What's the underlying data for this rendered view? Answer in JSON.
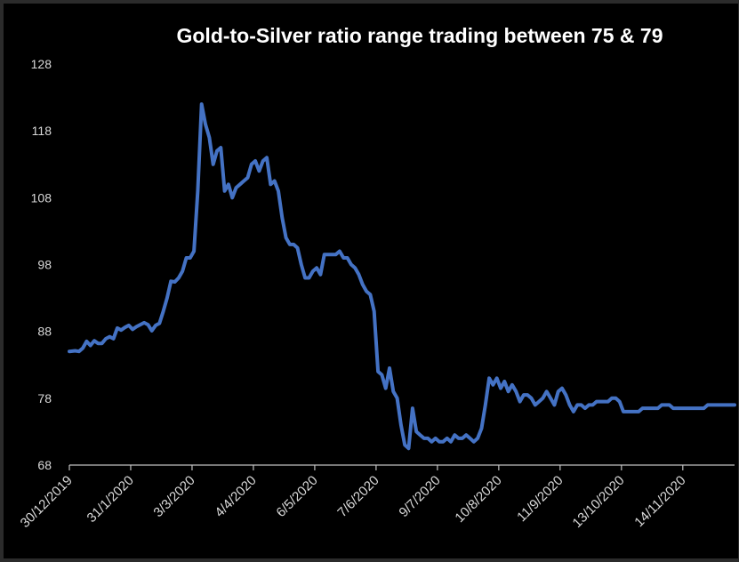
{
  "chart_data": {
    "type": "line",
    "title": "Gold-to-Silver ratio range trading between 75 & 79",
    "xlabel": "",
    "ylabel": "",
    "ylim": [
      68,
      128
    ],
    "yticks": [
      "128",
      "118",
      "108",
      "98",
      "88",
      "78",
      "68"
    ],
    "xticks": [
      "30/12/2019",
      "31/1/2020",
      "3/3/2020",
      "4/4/2020",
      "6/5/2020",
      "7/6/2020",
      "9/7/2020",
      "10/8/2020",
      "11/9/2020",
      "13/10/2020",
      "14/11/2020"
    ],
    "grid": false,
    "line_color": "#4472c4",
    "series": [
      {
        "x": [
          "30/12/2019",
          "2/1/2020",
          "4/1/2020",
          "6/1/2020",
          "8/1/2020",
          "10/1/2020",
          "12/1/2020",
          "14/1/2020",
          "16/1/2020",
          "18/1/2020",
          "20/1/2020",
          "22/1/2020",
          "24/1/2020",
          "26/1/2020",
          "28/1/2020",
          "30/1/2020",
          "1/2/2020",
          "3/2/2020",
          "5/2/2020",
          "7/2/2020",
          "9/2/2020",
          "11/2/2020",
          "13/2/2020",
          "15/2/2020",
          "17/2/2020",
          "19/2/2020",
          "21/2/2020",
          "23/2/2020",
          "25/2/2020",
          "27/2/2020",
          "29/2/2020",
          "2/3/2020",
          "4/3/2020",
          "6/3/2020",
          "8/3/2020",
          "10/3/2020",
          "12/3/2020",
          "14/3/2020",
          "16/3/2020",
          "18/3/2020",
          "20/3/2020",
          "22/3/2020",
          "24/3/2020",
          "26/3/2020",
          "28/3/2020",
          "30/3/2020",
          "1/4/2020",
          "3/4/2020",
          "5/4/2020",
          "7/4/2020",
          "9/4/2020",
          "11/4/2020",
          "13/4/2020",
          "15/4/2020",
          "17/4/2020",
          "19/4/2020",
          "21/4/2020",
          "23/4/2020",
          "25/4/2020",
          "27/4/2020",
          "29/4/2020",
          "1/5/2020",
          "3/5/2020",
          "5/5/2020",
          "7/5/2020",
          "9/5/2020",
          "11/5/2020",
          "13/5/2020",
          "15/5/2020",
          "17/5/2020",
          "19/5/2020",
          "21/5/2020",
          "23/5/2020",
          "25/5/2020",
          "27/5/2020",
          "29/5/2020",
          "31/5/2020",
          "2/6/2020",
          "4/6/2020",
          "6/6/2020",
          "8/6/2020",
          "10/6/2020",
          "12/6/2020",
          "14/6/2020",
          "16/6/2020",
          "18/6/2020",
          "20/6/2020",
          "22/6/2020",
          "24/6/2020",
          "26/6/2020",
          "28/6/2020",
          "30/6/2020",
          "2/7/2020",
          "4/7/2020",
          "6/7/2020",
          "8/7/2020",
          "10/7/2020",
          "12/7/2020",
          "14/7/2020",
          "16/7/2020",
          "18/7/2020",
          "20/7/2020",
          "22/7/2020",
          "24/7/2020",
          "26/7/2020",
          "28/7/2020",
          "30/7/2020",
          "1/8/2020",
          "3/8/2020",
          "5/8/2020",
          "7/8/2020",
          "9/8/2020",
          "11/8/2020",
          "13/8/2020",
          "15/8/2020",
          "17/8/2020",
          "19/8/2020",
          "21/8/2020",
          "23/8/2020",
          "25/8/2020",
          "27/8/2020",
          "29/8/2020",
          "31/8/2020",
          "2/9/2020",
          "4/9/2020",
          "6/9/2020",
          "8/9/2020",
          "10/9/2020",
          "12/9/2020",
          "14/9/2020",
          "16/9/2020",
          "18/9/2020",
          "20/9/2020",
          "22/9/2020",
          "24/9/2020",
          "26/9/2020",
          "28/9/2020",
          "30/9/2020",
          "2/10/2020",
          "4/10/2020",
          "6/10/2020",
          "8/10/2020",
          "10/10/2020",
          "12/10/2020",
          "14/10/2020",
          "16/10/2020",
          "18/10/2020",
          "20/10/2020",
          "22/10/2020",
          "24/10/2020",
          "26/10/2020",
          "28/10/2020",
          "30/10/2020",
          "1/11/2020",
          "3/11/2020",
          "5/11/2020",
          "7/11/2020",
          "9/11/2020",
          "11/11/2020",
          "13/11/2020",
          "15/11/2020",
          "17/11/2020",
          "19/11/2020",
          "21/11/2020",
          "23/11/2020",
          "25/11/2020",
          "27/11/2020",
          "29/11/2020",
          "1/12/2020",
          "3/12/2020",
          "5/12/2020",
          "7/12/2020",
          "9/12/2020",
          "11/12/2020"
        ],
        "y": [
          85.0,
          85.1,
          85.0,
          85.5,
          86.5,
          85.9,
          86.6,
          86.2,
          86.2,
          86.9,
          87.2,
          86.9,
          88.5,
          88.2,
          88.6,
          88.9,
          88.3,
          88.7,
          89.0,
          89.3,
          89.0,
          88.1,
          88.9,
          89.2,
          91.0,
          93.0,
          95.5,
          95.4,
          96.0,
          97.0,
          99.0,
          99.0,
          100.0,
          109.0,
          122.0,
          119.0,
          117.0,
          113.0,
          115.0,
          115.5,
          109.0,
          110.0,
          108.0,
          109.5,
          110.0,
          110.5,
          111.0,
          113.0,
          113.5,
          112.0,
          113.5,
          114.0,
          110.0,
          110.5,
          109.0,
          105.0,
          102.0,
          101.0,
          101.0,
          100.5,
          98.0,
          96.0,
          96.0,
          97.0,
          97.5,
          96.5,
          99.5,
          99.5,
          99.5,
          99.5,
          100.0,
          99.0,
          99.0,
          98.0,
          97.5,
          96.5,
          95.0,
          94.0,
          93.5,
          91.0,
          82.0,
          81.5,
          79.5,
          82.5,
          79.0,
          78.0,
          74.0,
          71.0,
          70.5,
          76.5,
          73.0,
          72.5,
          72.0,
          72.0,
          71.5,
          72.0,
          71.5,
          71.5,
          72.0,
          71.5,
          72.5,
          72.0,
          72.0,
          72.5,
          72.0,
          71.5,
          72.0,
          73.5,
          77.0,
          81.0,
          80.0,
          81.0,
          79.5,
          80.5,
          79.0,
          80.0,
          79.0,
          77.5,
          78.5,
          78.5,
          78.0,
          77.0,
          77.5,
          78.0,
          79.0,
          78.0,
          77.0,
          79.0,
          79.5,
          78.5,
          77.0,
          76.0,
          77.0,
          77.0,
          76.5,
          77.0,
          77.0,
          77.5,
          77.5,
          77.5,
          77.5,
          78.0,
          78.0,
          77.5,
          76.0,
          76.0,
          76.0,
          76.0,
          76.0,
          76.5,
          76.5,
          76.5,
          76.5,
          76.5,
          77.0,
          77.0,
          77.0,
          76.5,
          76.5,
          76.5,
          76.5,
          76.5,
          76.5,
          76.5,
          76.5,
          76.5,
          77.0,
          77.0,
          77.0,
          77.0,
          77.0,
          77.0,
          77.0,
          77.0
        ]
      }
    ]
  }
}
